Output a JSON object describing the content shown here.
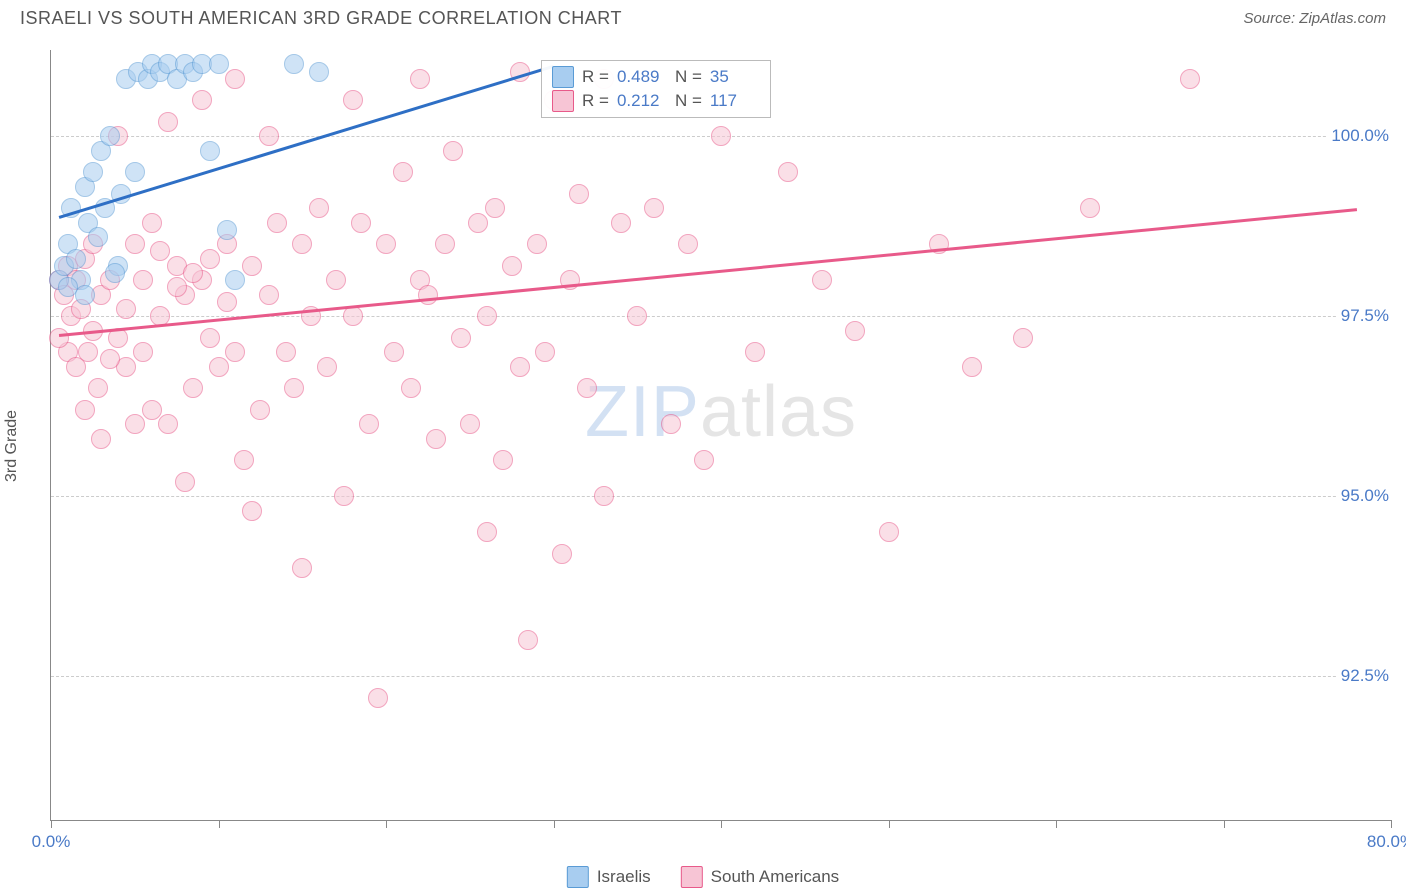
{
  "title": "ISRAELI VS SOUTH AMERICAN 3RD GRADE CORRELATION CHART",
  "source": "Source: ZipAtlas.com",
  "ylabel": "3rd Grade",
  "watermark_a": "ZIP",
  "watermark_b": "atlas",
  "chart": {
    "type": "scatter",
    "xlim": [
      0,
      80
    ],
    "ylim": [
      90.5,
      101.2
    ],
    "x_ticks": [
      0,
      10,
      20,
      30,
      40,
      50,
      60,
      70,
      80
    ],
    "x_tick_labels": {
      "0": "0.0%",
      "80": "80.0%"
    },
    "y_ticks": [
      92.5,
      95.0,
      97.5,
      100.0
    ],
    "y_tick_labels": [
      "92.5%",
      "95.0%",
      "97.5%",
      "100.0%"
    ],
    "background_color": "#ffffff",
    "grid_color": "#cccccc",
    "axis_color": "#888888",
    "label_color": "#4a7ac7",
    "marker_size": 18,
    "marker_opacity": 0.55,
    "series": [
      {
        "name": "Israelis",
        "fill": "#a8cdf0",
        "stroke": "#5a9bd5",
        "line_color": "#2e6fc5",
        "R": "0.489",
        "N": "35",
        "trend": {
          "x1": 0.5,
          "y1": 98.9,
          "x2": 30,
          "y2": 101.0
        },
        "points": [
          [
            0.5,
            98.0
          ],
          [
            0.8,
            98.2
          ],
          [
            1.0,
            98.5
          ],
          [
            1.2,
            99.0
          ],
          [
            1.5,
            98.3
          ],
          [
            1.8,
            98.0
          ],
          [
            2.0,
            99.3
          ],
          [
            2.2,
            98.8
          ],
          [
            2.5,
            99.5
          ],
          [
            2.8,
            98.6
          ],
          [
            3.0,
            99.8
          ],
          [
            3.2,
            99.0
          ],
          [
            3.5,
            100.0
          ],
          [
            4.0,
            98.2
          ],
          [
            4.2,
            99.2
          ],
          [
            4.5,
            100.8
          ],
          [
            5.0,
            99.5
          ],
          [
            5.2,
            100.9
          ],
          [
            5.8,
            100.8
          ],
          [
            6.0,
            101.0
          ],
          [
            6.5,
            100.9
          ],
          [
            7.0,
            101.0
          ],
          [
            7.5,
            100.8
          ],
          [
            8.0,
            101.0
          ],
          [
            8.5,
            100.9
          ],
          [
            9.0,
            101.0
          ],
          [
            9.5,
            99.8
          ],
          [
            10.0,
            101.0
          ],
          [
            10.5,
            98.7
          ],
          [
            11.0,
            98.0
          ],
          [
            3.8,
            98.1
          ],
          [
            14.5,
            101.0
          ],
          [
            16.0,
            100.9
          ],
          [
            1.0,
            97.9
          ],
          [
            2.0,
            97.8
          ]
        ]
      },
      {
        "name": "South Americans",
        "fill": "#f7c5d5",
        "stroke": "#e85a8a",
        "line_color": "#e85a8a",
        "R": "0.212",
        "N": "117",
        "trend": {
          "x1": 0.5,
          "y1": 97.25,
          "x2": 78,
          "y2": 99.0
        },
        "points": [
          [
            0.5,
            98.0
          ],
          [
            0.8,
            97.8
          ],
          [
            1.0,
            98.2
          ],
          [
            1.2,
            97.5
          ],
          [
            1.5,
            98.0
          ],
          [
            1.8,
            97.6
          ],
          [
            2.0,
            98.3
          ],
          [
            2.2,
            97.0
          ],
          [
            2.5,
            98.5
          ],
          [
            2.8,
            96.5
          ],
          [
            3.0,
            97.8
          ],
          [
            3.5,
            98.0
          ],
          [
            4.0,
            97.2
          ],
          [
            4.5,
            96.8
          ],
          [
            5.0,
            98.5
          ],
          [
            5.5,
            97.0
          ],
          [
            6.0,
            98.8
          ],
          [
            6.5,
            97.5
          ],
          [
            7.0,
            96.0
          ],
          [
            7.5,
            98.2
          ],
          [
            8.0,
            97.8
          ],
          [
            8.5,
            96.5
          ],
          [
            9.0,
            98.0
          ],
          [
            9.5,
            97.2
          ],
          [
            10.0,
            96.8
          ],
          [
            10.5,
            98.5
          ],
          [
            11.0,
            97.0
          ],
          [
            11.5,
            95.5
          ],
          [
            12.0,
            98.2
          ],
          [
            12.5,
            96.2
          ],
          [
            13.0,
            97.8
          ],
          [
            13.5,
            98.8
          ],
          [
            14.0,
            97.0
          ],
          [
            14.5,
            96.5
          ],
          [
            15.0,
            98.5
          ],
          [
            15.5,
            97.5
          ],
          [
            16.0,
            99.0
          ],
          [
            16.5,
            96.8
          ],
          [
            17.0,
            98.0
          ],
          [
            17.5,
            95.0
          ],
          [
            18.0,
            97.5
          ],
          [
            18.5,
            98.8
          ],
          [
            19.0,
            96.0
          ],
          [
            19.5,
            92.2
          ],
          [
            20.0,
            98.5
          ],
          [
            20.5,
            97.0
          ],
          [
            21.0,
            99.5
          ],
          [
            21.5,
            96.5
          ],
          [
            22.0,
            98.0
          ],
          [
            22.5,
            97.8
          ],
          [
            23.0,
            95.8
          ],
          [
            23.5,
            98.5
          ],
          [
            24.0,
            99.8
          ],
          [
            24.5,
            97.2
          ],
          [
            25.0,
            96.0
          ],
          [
            25.5,
            98.8
          ],
          [
            26.0,
            97.5
          ],
          [
            26.5,
            99.0
          ],
          [
            27.0,
            95.5
          ],
          [
            27.5,
            98.2
          ],
          [
            28.0,
            96.8
          ],
          [
            28.5,
            93.0
          ],
          [
            29.0,
            98.5
          ],
          [
            29.5,
            97.0
          ],
          [
            30.0,
            100.5
          ],
          [
            30.5,
            94.2
          ],
          [
            31.0,
            98.0
          ],
          [
            31.5,
            99.2
          ],
          [
            32.0,
            96.5
          ],
          [
            33.0,
            95.0
          ],
          [
            34.0,
            98.8
          ],
          [
            35.0,
            97.5
          ],
          [
            36.0,
            99.0
          ],
          [
            37.0,
            96.0
          ],
          [
            38.0,
            98.5
          ],
          [
            39.0,
            95.5
          ],
          [
            40.0,
            100.0
          ],
          [
            42.0,
            97.0
          ],
          [
            44.0,
            99.5
          ],
          [
            46.0,
            98.0
          ],
          [
            48.0,
            97.3
          ],
          [
            50.0,
            94.5
          ],
          [
            53.0,
            98.5
          ],
          [
            55.0,
            96.8
          ],
          [
            58.0,
            97.2
          ],
          [
            62.0,
            99.0
          ],
          [
            68.0,
            100.8
          ],
          [
            28.0,
            100.9
          ],
          [
            30.5,
            100.7
          ],
          [
            33.0,
            100.8
          ],
          [
            8.0,
            95.2
          ],
          [
            12.0,
            94.8
          ],
          [
            15.0,
            94.0
          ],
          [
            18.0,
            100.5
          ],
          [
            22.0,
            100.8
          ],
          [
            26.0,
            94.5
          ],
          [
            5.0,
            96.0
          ],
          [
            7.0,
            100.2
          ],
          [
            9.0,
            100.5
          ],
          [
            11.0,
            100.8
          ],
          [
            13.0,
            100.0
          ],
          [
            2.0,
            96.2
          ],
          [
            3.0,
            95.8
          ],
          [
            4.0,
            100.0
          ],
          [
            6.0,
            96.2
          ],
          [
            1.0,
            97.0
          ],
          [
            0.5,
            97.2
          ],
          [
            1.5,
            96.8
          ],
          [
            2.5,
            97.3
          ],
          [
            3.5,
            96.9
          ],
          [
            4.5,
            97.6
          ],
          [
            5.5,
            98.0
          ],
          [
            6.5,
            98.4
          ],
          [
            7.5,
            97.9
          ],
          [
            8.5,
            98.1
          ],
          [
            9.5,
            98.3
          ],
          [
            10.5,
            97.7
          ]
        ]
      }
    ]
  },
  "legend": {
    "items": [
      "Israelis",
      "South Americans"
    ]
  }
}
